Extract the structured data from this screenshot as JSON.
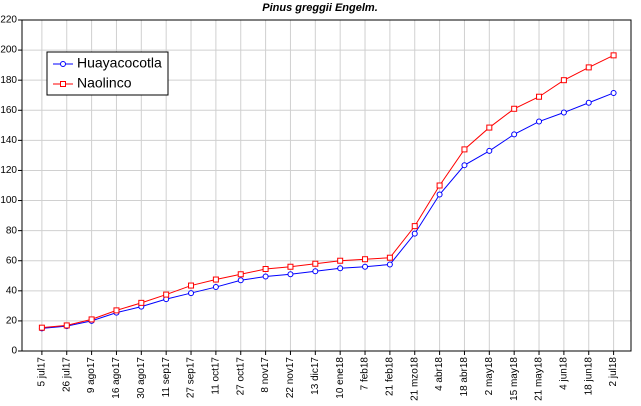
{
  "chart_data": {
    "type": "line",
    "title": "Pinus greggii Engelm.",
    "categories": [
      "5 jul17",
      "26 jul17",
      "9 ago17",
      "16 ago17",
      "30 ago17",
      "11 sep17",
      "27 sep17",
      "11 oct17",
      "27 oct17",
      "8 nov17",
      "22 nov17",
      "13 dic17",
      "10 ene18",
      "7 feb18",
      "21 feb18",
      "21 mzo18",
      "4 abr18",
      "18 abr18",
      "2 may18",
      "15 may18",
      "21 may18",
      "4 jun18",
      "18 jun18",
      "2 jul18"
    ],
    "series": [
      {
        "name": "Huayacocotla",
        "color": "#0000ff",
        "marker": "circle",
        "values": [
          15,
          16.5,
          20,
          25.5,
          29.5,
          34.5,
          38.5,
          42.5,
          47,
          49.5,
          51,
          53,
          55,
          56,
          57.5,
          78,
          104,
          123.5,
          133,
          144,
          152.5,
          158.5,
          165,
          171.5
        ]
      },
      {
        "name": "Naolinco",
        "color": "#ff0000",
        "marker": "square",
        "values": [
          15.5,
          17,
          21,
          27,
          32,
          37.5,
          43.5,
          47.5,
          51,
          54.5,
          56,
          58,
          60,
          61,
          62,
          83,
          110,
          134,
          148.5,
          161,
          169,
          180,
          188.5,
          196.5
        ]
      }
    ],
    "ylim": [
      0,
      220
    ],
    "yticks": [
      0,
      20,
      40,
      60,
      80,
      100,
      120,
      140,
      160,
      180,
      200,
      220
    ],
    "grid": true,
    "legend_position": "upper left"
  }
}
